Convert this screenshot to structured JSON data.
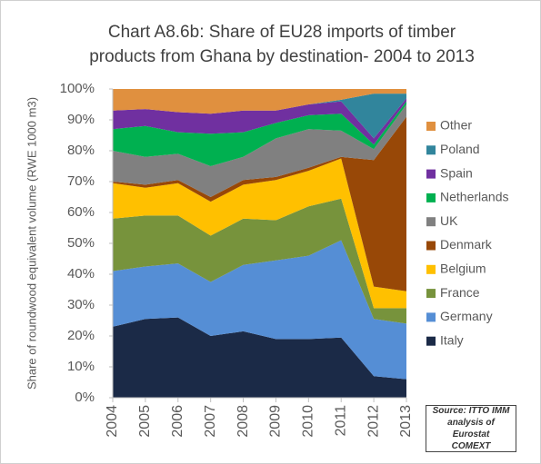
{
  "chart_data": {
    "type": "stacked_area",
    "title": "Chart A8.6b: Share of EU28 imports of timber products from Ghana by destination- 2004 to 2013",
    "y_label": "Share of roundwood equivalent volume (RWE 1000 m3)",
    "source": "Source: ITTO IMM analysis of Eurostat COMEXT",
    "x": [
      2004,
      2005,
      2006,
      2007,
      2008,
      2009,
      2010,
      2011,
      2012,
      2013
    ],
    "xlim": [
      2004,
      2013
    ],
    "xticks": [
      2004,
      2005,
      2006,
      2007,
      2008,
      2009,
      2010,
      2011,
      2012,
      2013
    ],
    "ylim": [
      0,
      100
    ],
    "yticks": [
      {
        "value": 0,
        "label": "0%"
      },
      {
        "value": 10,
        "label": "10%"
      },
      {
        "value": 20,
        "label": "20%"
      },
      {
        "value": 30,
        "label": "30%"
      },
      {
        "value": 40,
        "label": "40%"
      },
      {
        "value": 50,
        "label": "50%"
      },
      {
        "value": 60,
        "label": "60%"
      },
      {
        "value": 70,
        "label": "70%"
      },
      {
        "value": 80,
        "label": "80%"
      },
      {
        "value": 90,
        "label": "90%"
      },
      {
        "value": 100,
        "label": "100%"
      }
    ],
    "legend": "right",
    "series": [
      {
        "name": "Italy",
        "color": "#1b2a47",
        "values": [
          23,
          25.5,
          26,
          20,
          21.5,
          19,
          19,
          19.5,
          7,
          6
        ]
      },
      {
        "name": "Germany",
        "color": "#558ed5",
        "values": [
          18,
          17,
          17.5,
          17.5,
          21.5,
          25.5,
          27,
          31.5,
          18.5,
          18
        ]
      },
      {
        "name": "France",
        "color": "#77933c",
        "values": [
          17,
          16.5,
          15.5,
          15,
          15,
          13,
          16,
          13.5,
          3.5,
          5
        ]
      },
      {
        "name": "Belgium",
        "color": "#ffc000",
        "values": [
          11.5,
          9,
          10.5,
          11,
          11,
          13,
          11.5,
          13,
          7,
          5.5
        ]
      },
      {
        "name": "Denmark",
        "color": "#984807",
        "values": [
          0.5,
          1,
          1,
          1.5,
          1.5,
          1,
          1,
          0.5,
          41,
          56.5
        ]
      },
      {
        "name": "UK",
        "color": "#808080",
        "values": [
          10,
          9,
          8.5,
          10,
          7.5,
          12.5,
          12.5,
          8.5,
          3.5,
          4
        ]
      },
      {
        "name": "Netherlands",
        "color": "#00b050",
        "values": [
          7,
          10,
          7,
          10.5,
          8,
          5,
          4.5,
          5.5,
          1.5,
          1
        ]
      },
      {
        "name": "Spain",
        "color": "#7030a0",
        "values": [
          6,
          5.5,
          6.5,
          6.5,
          7,
          4,
          3.5,
          4,
          2,
          1
        ]
      },
      {
        "name": "Poland",
        "color": "#31859c",
        "values": [
          0,
          0,
          0,
          0,
          0,
          0,
          0,
          0.5,
          14.5,
          1.5
        ]
      },
      {
        "name": "Other",
        "color": "#e0903f",
        "values": [
          7,
          6.5,
          7.5,
          8,
          7,
          7,
          5,
          3.5,
          1.5,
          1.5
        ]
      }
    ]
  }
}
